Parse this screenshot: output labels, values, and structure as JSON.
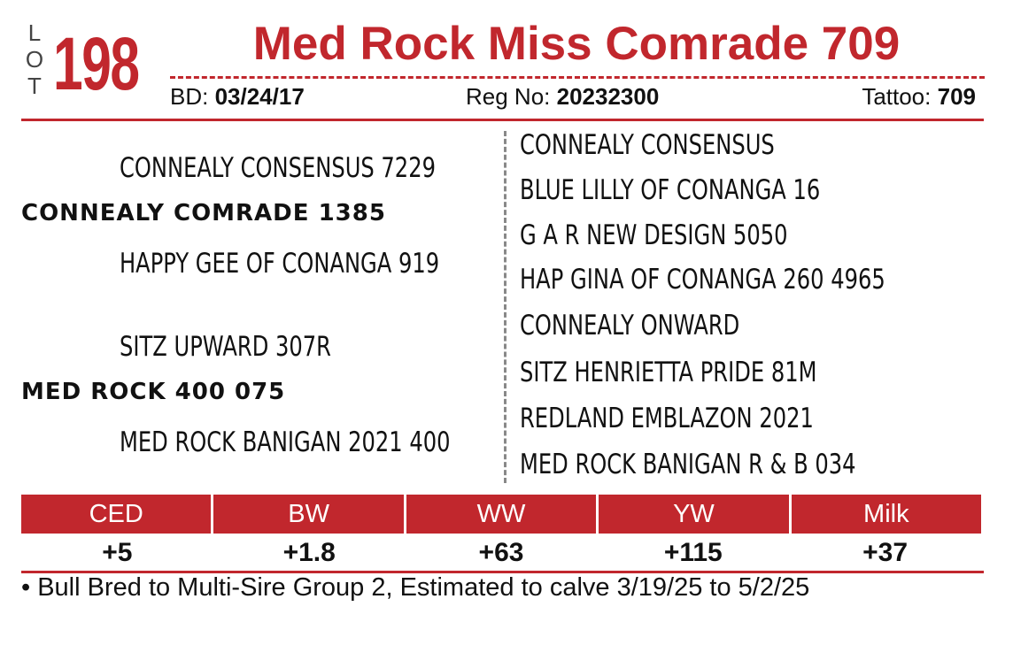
{
  "lot": {
    "word": [
      "L",
      "O",
      "T"
    ],
    "number": "198"
  },
  "title": "Med Rock Miss Comrade 709",
  "meta": {
    "bd_label": "BD:",
    "bd_value": "03/24/17",
    "reg_label": "Reg No:",
    "reg_value": "20232300",
    "tattoo_label": "Tattoo:",
    "tattoo_value": "709"
  },
  "pedigree": {
    "sire": "CONNEALY COMRADE 1385",
    "sire_sire": "CONNEALY CONSENSUS 7229",
    "sire_dam": "HAPPY GEE OF CONANGA 919",
    "dam": "MED ROCK 400 075",
    "dam_sire": "SITZ UPWARD 307R",
    "dam_dam": "MED ROCK BANIGAN 2021 400",
    "great_grandparents": [
      "CONNEALY CONSENSUS",
      "BLUE LILLY OF CONANGA 16",
      "G A R NEW DESIGN 5050",
      "HAP GINA OF CONANGA 260 4965",
      "CONNEALY ONWARD",
      "SITZ HENRIETTA PRIDE 81M",
      "REDLAND EMBLAZON 2021",
      "MED ROCK BANIGAN R & B 034"
    ]
  },
  "epd": {
    "headers": [
      "CED",
      "BW",
      "WW",
      "YW",
      "Milk"
    ],
    "values": [
      "+5",
      "+1.8",
      "+63",
      "+115",
      "+37"
    ]
  },
  "note": "• Bull Bred to Multi-Sire Group 2, Estimated to calve 3/19/25 to 5/2/25",
  "colors": {
    "accent": "#c1272d",
    "text": "#111111"
  }
}
